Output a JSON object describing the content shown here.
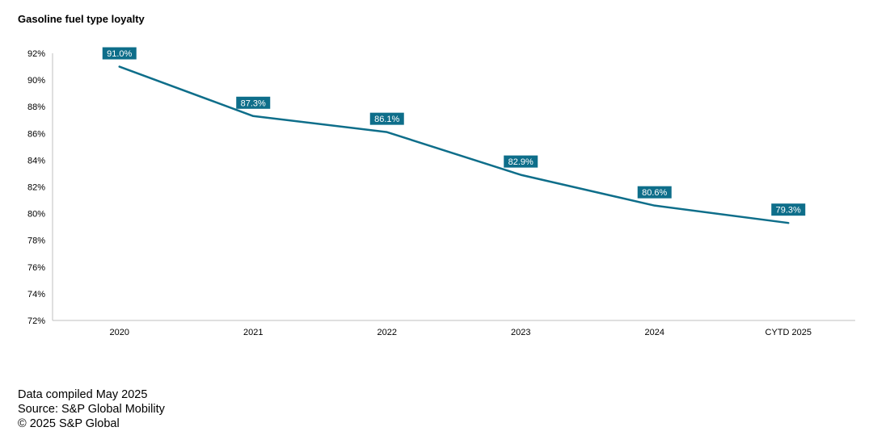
{
  "chart_data": {
    "type": "line",
    "title": "Gasoline fuel type loyalty",
    "categories": [
      "2020",
      "2021",
      "2022",
      "2023",
      "2024",
      "CYTD 2025"
    ],
    "series": [
      {
        "values": [
          91.0,
          87.3,
          86.1,
          82.9,
          80.6,
          79.3
        ],
        "data_labels": [
          "91.0%",
          "87.3%",
          "86.1%",
          "82.9%",
          "80.6%",
          "79.3%"
        ],
        "color": "#0e6e8a"
      }
    ],
    "ylim": [
      72,
      92
    ],
    "yticks": [
      72,
      74,
      76,
      78,
      80,
      82,
      84,
      86,
      88,
      90,
      92
    ],
    "ytick_labels": [
      "72%",
      "74%",
      "76%",
      "78%",
      "80%",
      "82%",
      "84%",
      "86%",
      "88%",
      "90%",
      "92%"
    ],
    "xlabel": "",
    "ylabel": "",
    "grid": false,
    "legend": "none",
    "label_color": "#0e6e8a",
    "axis_color": "#bfbfbf"
  },
  "footer": {
    "compiled": "Data compiled May 2025",
    "source": "Source: S&P Global Mobility",
    "copyright": "© 2025 S&P Global"
  }
}
